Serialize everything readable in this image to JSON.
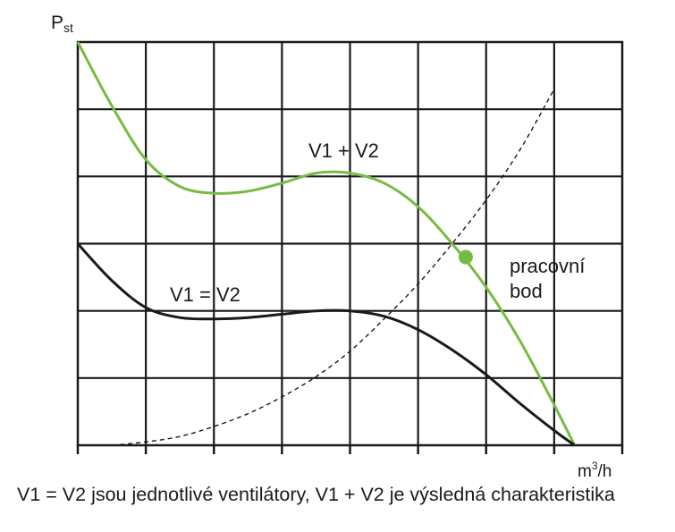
{
  "chart_data": {
    "type": "line",
    "title": "",
    "xlabel": {
      "base": "m",
      "sup": "3",
      "tail": "/h"
    },
    "ylabel": {
      "base": "P",
      "sub": "st"
    },
    "xlim": [
      0,
      8
    ],
    "ylim": [
      0,
      6
    ],
    "grid": true,
    "tick_labels": false,
    "series": [
      {
        "name": "V1 + V2",
        "color": "#76bc43",
        "style": "solid",
        "x": [
          0,
          0.5,
          1.0,
          1.5,
          2.0,
          2.5,
          3.0,
          3.5,
          4.0,
          4.5,
          5.0,
          5.5,
          6.0,
          6.5,
          7.0,
          7.3
        ],
        "y": [
          6.0,
          5.05,
          4.25,
          3.85,
          3.75,
          3.78,
          3.9,
          4.05,
          4.05,
          3.9,
          3.55,
          3.0,
          2.35,
          1.55,
          0.6,
          0.0
        ]
      },
      {
        "name": "V1 = V2",
        "color": "#1a1a1a",
        "style": "solid",
        "x": [
          0,
          0.5,
          1.0,
          1.5,
          2.0,
          2.5,
          3.0,
          3.5,
          4.0,
          4.5,
          5.0,
          5.5,
          6.0,
          6.5,
          7.0,
          7.3
        ],
        "y": [
          3.0,
          2.45,
          2.05,
          1.9,
          1.88,
          1.9,
          1.95,
          2.0,
          2.0,
          1.92,
          1.72,
          1.42,
          1.05,
          0.62,
          0.22,
          0.0
        ]
      },
      {
        "name": "",
        "color": "#1a1a1a",
        "style": "dashed",
        "x": [
          0.5,
          1.0,
          1.5,
          2.0,
          2.5,
          3.0,
          3.5,
          4.0,
          4.5,
          5.0,
          5.5,
          6.0,
          6.5,
          7.0
        ],
        "y": [
          0.0,
          0.05,
          0.13,
          0.28,
          0.47,
          0.72,
          1.02,
          1.4,
          1.88,
          2.4,
          3.0,
          3.65,
          4.4,
          5.3
        ]
      }
    ],
    "operating_point": {
      "x": 5.7,
      "y": 2.8,
      "color": "#76bc43"
    },
    "annotations": {
      "sum_curve": "V1 + V2",
      "single_curve": "V1 = V2",
      "point_line1": "pracovní",
      "point_line2": "bod"
    }
  },
  "caption": "V1 = V2 jsou jednotlivé ventilátory, V1 + V2 je výsledná charakteristika"
}
